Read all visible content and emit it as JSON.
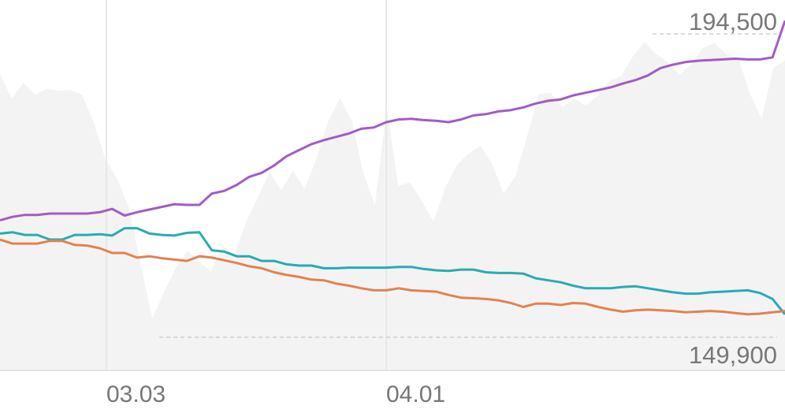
{
  "chart_data": {
    "type": "line",
    "title": "",
    "xlabel": "",
    "ylabel": "",
    "grid": "vertical lines at date ticks",
    "legend": "none",
    "x_ticks": [
      "03.03",
      "04.01"
    ],
    "y_range_labels": {
      "max": "194,500",
      "min": "149,900"
    },
    "ylim": [
      142100,
      197600
    ],
    "colors": {
      "purple": "#a25bc5",
      "teal": "#2ba9b6",
      "orange": "#e2824e",
      "area": "#f3f3f3"
    },
    "background_area": {
      "note_values": "relative-volume band in background",
      "values": [
        186500,
        182800,
        185200,
        183400,
        184300,
        184000,
        184100,
        183400,
        179300,
        173700,
        170800,
        166500,
        158000,
        149900,
        153800,
        157500,
        160000,
        158400,
        156900,
        160800,
        159300,
        164400,
        168000,
        171800,
        169100,
        172000,
        169300,
        173800,
        179400,
        182900,
        179600,
        171800,
        166800,
        181600,
        169700,
        170300,
        167500,
        164400,
        169500,
        172900,
        174600,
        175800,
        173000,
        168600,
        171200,
        177300,
        183500,
        183700,
        181500,
        182800,
        181800,
        183200,
        185500,
        186200,
        189100,
        191300,
        189500,
        188300,
        186400,
        188000,
        190400,
        191200,
        189400,
        189000,
        183600,
        179800,
        187400,
        188600
      ],
      "note": "area heights shown as price-equivalent"
    },
    "series": [
      {
        "color": "#a25bc5",
        "values": [
          164600,
          165100,
          165400,
          165400,
          165600,
          165600,
          165600,
          165600,
          165800,
          166300,
          165300,
          165800,
          166200,
          166600,
          167000,
          166900,
          166900,
          168600,
          169000,
          169900,
          171100,
          171700,
          172800,
          174200,
          175100,
          176000,
          176600,
          177100,
          177600,
          178300,
          178500,
          179300,
          179700,
          179800,
          179600,
          179500,
          179300,
          179700,
          180300,
          180500,
          180900,
          181100,
          181500,
          182100,
          182500,
          182700,
          183300,
          183700,
          184100,
          184500,
          185100,
          185600,
          186300,
          187400,
          187900,
          188300,
          188500,
          188600,
          188700,
          188800,
          188700,
          188700,
          189000,
          194500
        ]
      },
      {
        "color": "#2ba9b6",
        "values": [
          162600,
          162800,
          162400,
          162400,
          161700,
          161700,
          162400,
          162400,
          162500,
          162300,
          163400,
          163400,
          162600,
          162400,
          162300,
          162700,
          162800,
          160100,
          159900,
          159200,
          159200,
          158500,
          158500,
          158000,
          157800,
          157800,
          157400,
          157400,
          157500,
          157500,
          157500,
          157500,
          157600,
          157600,
          157300,
          157100,
          157000,
          157200,
          157200,
          156800,
          156700,
          156700,
          156600,
          155900,
          155600,
          155300,
          154800,
          154400,
          154400,
          154400,
          154600,
          154700,
          154400,
          154100,
          153800,
          153600,
          153600,
          153800,
          153900,
          154000,
          154100,
          153700,
          152800,
          150500
        ]
      },
      {
        "color": "#e2824e",
        "values": [
          161700,
          161100,
          161100,
          161100,
          161500,
          161500,
          160900,
          160800,
          160400,
          159700,
          159700,
          159000,
          159200,
          158900,
          158700,
          158500,
          159200,
          159000,
          158600,
          158200,
          157700,
          157400,
          156800,
          156400,
          156100,
          155700,
          155600,
          155100,
          154800,
          154400,
          154100,
          154100,
          154400,
          154100,
          154000,
          153900,
          153400,
          153000,
          152900,
          152800,
          152600,
          152200,
          151600,
          152100,
          152100,
          151900,
          152200,
          152100,
          151600,
          151200,
          150900,
          151100,
          151200,
          151100,
          151000,
          150800,
          150900,
          151000,
          150900,
          150700,
          150500,
          150600,
          150800,
          151000
        ]
      }
    ]
  }
}
